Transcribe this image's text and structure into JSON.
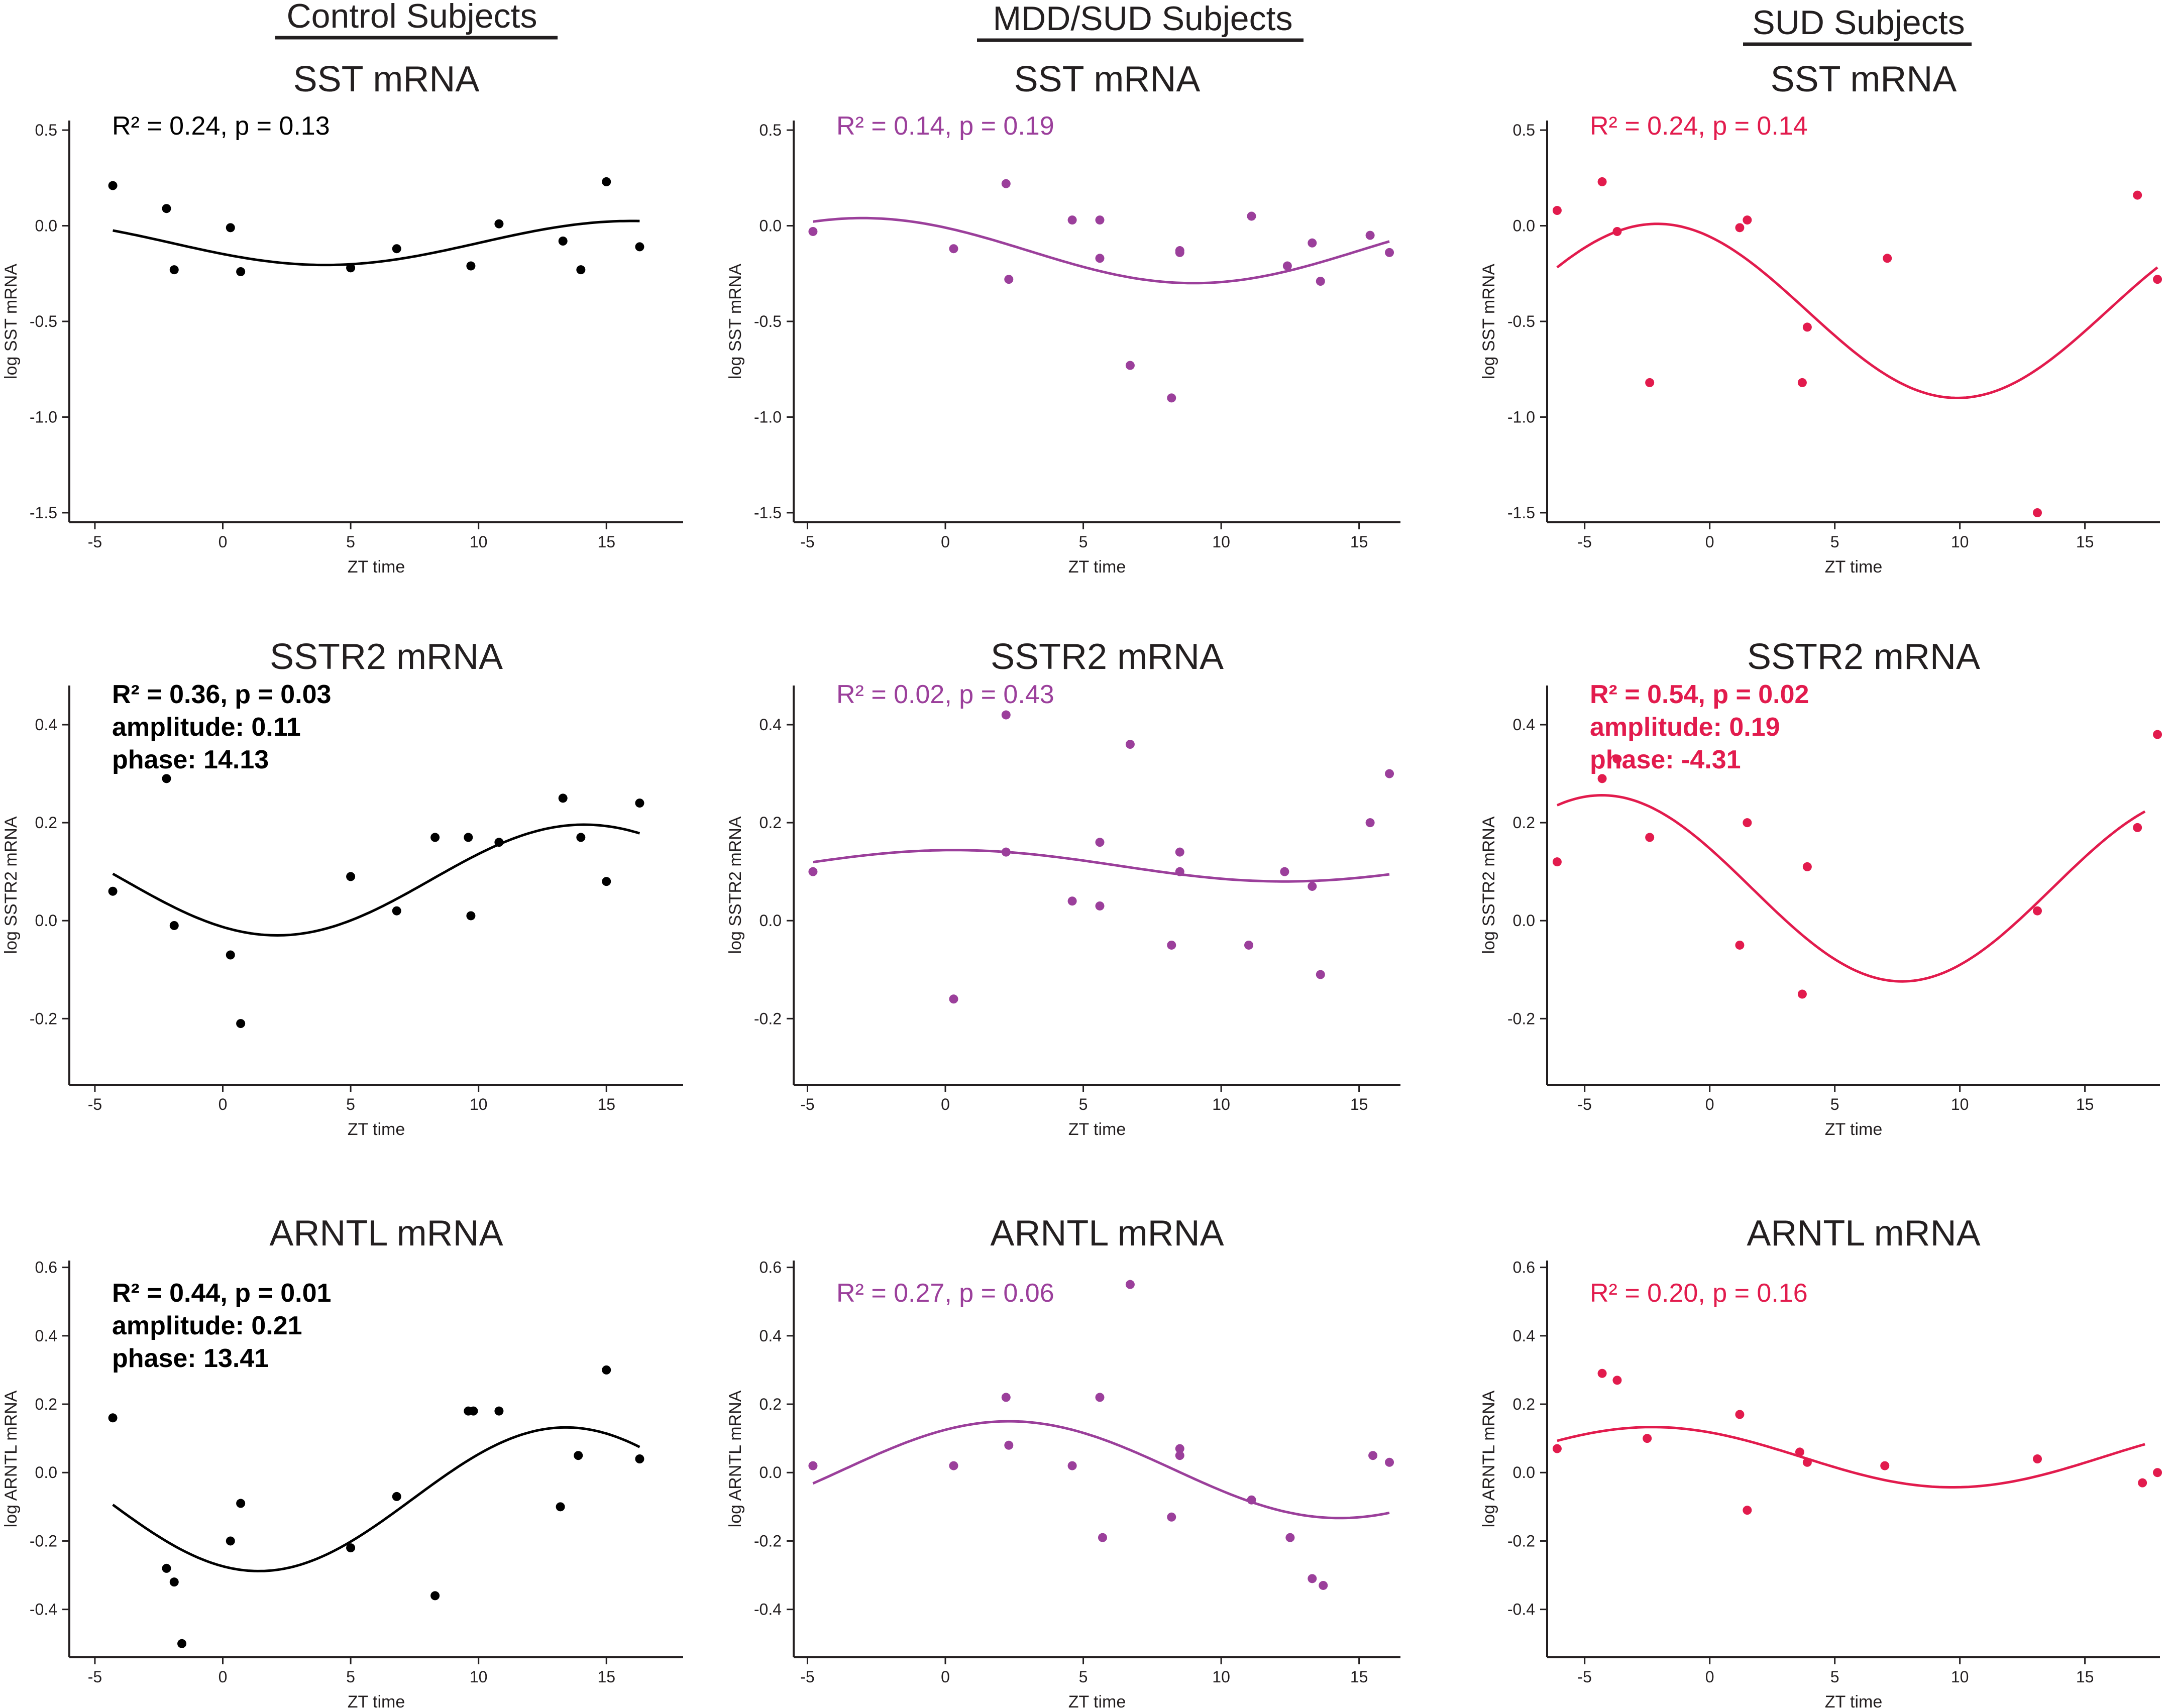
{
  "columns": [
    {
      "label": "Control Subjects",
      "color": "#000000"
    },
    {
      "label": "MDD/SUD Subjects",
      "color": "#9b3f9b"
    },
    {
      "label": "SUD Subjects",
      "color": "#e21b4d"
    }
  ],
  "chart_data": [
    {
      "type": "scatter",
      "row": 0,
      "col": 0,
      "title": "SST mRNA",
      "stats": [
        "R² = 0.24, p = 0.13"
      ],
      "stats_bold": false,
      "xlabel": "ZT time",
      "ylabel": "log SST mRNA",
      "xlim": [
        -6,
        18
      ],
      "ylim": [
        -1.55,
        0.55
      ],
      "xticks": [
        -5,
        0,
        5,
        10,
        15
      ],
      "xtick_labels": [
        "-5",
        "0",
        "5",
        "10",
        "15"
      ],
      "yticks": [
        0.5,
        0.0,
        -0.5,
        -1.0,
        -1.5
      ],
      "ytick_labels": [
        "0.5",
        "0.0",
        "-0.5",
        "-1.0",
        "-1.5"
      ],
      "points": [
        [
          -4.3,
          0.21
        ],
        [
          -2.2,
          0.09
        ],
        [
          -1.9,
          -0.23
        ],
        [
          0.3,
          -0.01
        ],
        [
          0.7,
          -0.24
        ],
        [
          5.0,
          -0.22
        ],
        [
          6.8,
          -0.12
        ],
        [
          9.7,
          -0.21
        ],
        [
          10.8,
          0.01
        ],
        [
          13.3,
          -0.08
        ],
        [
          14.0,
          -0.23
        ],
        [
          15.0,
          0.23
        ],
        [
          16.3,
          -0.11
        ]
      ],
      "fit": {
        "mesor": -0.09,
        "amplitude": 0.115,
        "peak": 16.0,
        "x_from": -4.3,
        "x_to": 16.3
      }
    },
    {
      "type": "scatter",
      "row": 0,
      "col": 1,
      "title": "SST mRNA",
      "stats": [
        "R² =  0.14, p = 0.19"
      ],
      "stats_bold": false,
      "xlabel": "ZT time",
      "ylabel": "log SST mRNA",
      "xlim": [
        -5.5,
        16.5
      ],
      "ylim": [
        -1.55,
        0.55
      ],
      "xticks": [
        -5,
        0,
        5,
        10,
        15
      ],
      "xtick_labels": [
        "-5",
        "0",
        "5",
        "10",
        "15"
      ],
      "yticks": [
        0.5,
        0.0,
        -0.5,
        -1.0,
        -1.5
      ],
      "ytick_labels": [
        "0.5",
        "0.0",
        "-0.5",
        "-1.0",
        "-1.5"
      ],
      "points": [
        [
          -4.8,
          -0.03
        ],
        [
          0.3,
          -0.12
        ],
        [
          2.2,
          0.22
        ],
        [
          2.3,
          -0.28
        ],
        [
          4.6,
          0.03
        ],
        [
          5.6,
          0.03
        ],
        [
          5.6,
          -0.17
        ],
        [
          6.7,
          -0.73
        ],
        [
          8.2,
          -0.9
        ],
        [
          8.5,
          -0.13
        ],
        [
          8.5,
          -0.14
        ],
        [
          11.1,
          0.05
        ],
        [
          12.4,
          -0.21
        ],
        [
          13.3,
          -0.09
        ],
        [
          13.6,
          -0.29
        ],
        [
          15.4,
          -0.05
        ],
        [
          16.1,
          -0.14
        ]
      ],
      "fit": {
        "mesor": -0.13,
        "amplitude": 0.17,
        "peak": -3.0,
        "x_from": -4.8,
        "x_to": 16.1
      }
    },
    {
      "type": "scatter",
      "row": 0,
      "col": 2,
      "title": "SST mRNA",
      "stats": [
        "R² = 0.24, p = 0.14"
      ],
      "stats_bold": false,
      "xlabel": "ZT time",
      "ylabel": "log SST mRNA",
      "xlim": [
        -6.5,
        18
      ],
      "ylim": [
        -1.55,
        0.55
      ],
      "xticks": [
        -5,
        0,
        5,
        10,
        15
      ],
      "xtick_labels": [
        "-5",
        "0",
        "5",
        "10",
        "15"
      ],
      "yticks": [
        0.5,
        0.0,
        -0.5,
        -1.0,
        -1.5
      ],
      "ytick_labels": [
        "0.5",
        "0.0",
        "-0.5",
        "-1.0",
        "-1.5"
      ],
      "points": [
        [
          -6.1,
          0.08
        ],
        [
          -4.3,
          0.23
        ],
        [
          -3.7,
          -0.03
        ],
        [
          -2.4,
          -0.82
        ],
        [
          1.2,
          -0.01
        ],
        [
          1.5,
          0.03
        ],
        [
          3.7,
          -0.82
        ],
        [
          3.9,
          -0.53
        ],
        [
          7.1,
          -0.17
        ],
        [
          13.1,
          -1.5
        ],
        [
          17.1,
          0.16
        ],
        [
          17.9,
          -0.28
        ]
      ],
      "fit": {
        "mesor": -0.445,
        "amplitude": 0.455,
        "peak": -2.1,
        "x_from": -6.1,
        "x_to": 17.9
      }
    },
    {
      "type": "scatter",
      "row": 1,
      "col": 0,
      "title": "SSTR2 mRNA",
      "stats": [
        "R² = 0.36, p = 0.03",
        "amplitude: 0.11",
        "phase: 14.13"
      ],
      "stats_bold": true,
      "xlabel": "ZT time",
      "ylabel": "log SSTR2 mRNA",
      "xlim": [
        -6,
        18
      ],
      "ylim": [
        -0.335,
        0.48
      ],
      "xticks": [
        -5,
        0,
        5,
        10,
        15
      ],
      "xtick_labels": [
        "-5",
        "0",
        "5",
        "10",
        "15"
      ],
      "yticks": [
        0.4,
        0.2,
        0.0,
        -0.2
      ],
      "ytick_labels": [
        "0.4",
        "0.2",
        "0.0",
        "-0.2"
      ],
      "points": [
        [
          -4.3,
          0.06
        ],
        [
          -2.2,
          0.29
        ],
        [
          -1.9,
          -0.01
        ],
        [
          0.3,
          -0.07
        ],
        [
          0.7,
          -0.21
        ],
        [
          5.0,
          0.09
        ],
        [
          6.8,
          0.02
        ],
        [
          8.3,
          0.17
        ],
        [
          9.6,
          0.17
        ],
        [
          9.7,
          0.01
        ],
        [
          10.8,
          0.16
        ],
        [
          13.3,
          0.25
        ],
        [
          14.0,
          0.17
        ],
        [
          15.0,
          0.08
        ],
        [
          16.3,
          0.24
        ]
      ],
      "fit": {
        "mesor": 0.083,
        "amplitude": 0.113,
        "peak": 14.13,
        "x_from": -4.3,
        "x_to": 16.3
      }
    },
    {
      "type": "scatter",
      "row": 1,
      "col": 1,
      "title": "SSTR2 mRNA",
      "stats": [
        "R² = 0.02, p = 0.43"
      ],
      "stats_bold": false,
      "xlabel": "ZT time",
      "ylabel": "log SSTR2 mRNA",
      "xlim": [
        -5.5,
        16.5
      ],
      "ylim": [
        -0.335,
        0.48
      ],
      "xticks": [
        -5,
        0,
        5,
        10,
        15
      ],
      "xtick_labels": [
        "-5",
        "0",
        "5",
        "10",
        "15"
      ],
      "yticks": [
        0.4,
        0.2,
        0.0,
        -0.2
      ],
      "ytick_labels": [
        "0.4",
        "0.2",
        "0.0",
        "-0.2"
      ],
      "points": [
        [
          -4.8,
          0.1
        ],
        [
          0.3,
          -0.16
        ],
        [
          2.2,
          0.42
        ],
        [
          2.2,
          0.14
        ],
        [
          4.6,
          0.04
        ],
        [
          5.6,
          0.16
        ],
        [
          5.6,
          0.03
        ],
        [
          6.7,
          0.36
        ],
        [
          8.2,
          -0.05
        ],
        [
          8.5,
          0.14
        ],
        [
          8.5,
          0.1
        ],
        [
          11.0,
          -0.05
        ],
        [
          12.3,
          0.1
        ],
        [
          13.3,
          0.07
        ],
        [
          13.6,
          -0.11
        ],
        [
          15.4,
          0.2
        ],
        [
          16.1,
          0.3
        ]
      ],
      "fit": {
        "mesor": 0.112,
        "amplitude": 0.032,
        "peak": 0.3,
        "x_from": -4.8,
        "x_to": 16.1
      }
    },
    {
      "type": "scatter",
      "row": 1,
      "col": 2,
      "title": "SSTR2 mRNA",
      "stats": [
        "R² = 0.54, p = 0.02",
        "amplitude: 0.19",
        "phase: -4.31"
      ],
      "stats_bold": true,
      "xlabel": "ZT time",
      "ylabel": "log SSTR2 mRNA",
      "xlim": [
        -6.5,
        18
      ],
      "ylim": [
        -0.335,
        0.48
      ],
      "xticks": [
        -5,
        0,
        5,
        10,
        15
      ],
      "xtick_labels": [
        "-5",
        "0",
        "5",
        "10",
        "15"
      ],
      "yticks": [
        0.4,
        0.2,
        0.0,
        -0.2
      ],
      "ytick_labels": [
        "0.4",
        "0.2",
        "0.0",
        "-0.2"
      ],
      "points": [
        [
          -6.1,
          0.12
        ],
        [
          -4.3,
          0.29
        ],
        [
          -3.7,
          0.33
        ],
        [
          -2.4,
          0.17
        ],
        [
          1.2,
          -0.05
        ],
        [
          1.5,
          0.2
        ],
        [
          3.7,
          -0.15
        ],
        [
          3.9,
          0.11
        ],
        [
          13.1,
          0.02
        ],
        [
          17.1,
          0.19
        ],
        [
          17.9,
          0.38
        ]
      ],
      "fit": {
        "mesor": 0.066,
        "amplitude": 0.19,
        "peak": -4.31,
        "x_from": -6.1,
        "x_to": 17.4
      }
    },
    {
      "type": "scatter",
      "row": 2,
      "col": 0,
      "title": "ARNTL mRNA",
      "stats": [
        "R² = 0.44, p = 0.01",
        "amplitude: 0.21",
        "phase: 13.41"
      ],
      "stats_bold": true,
      "xlabel": "ZT time",
      "ylabel": "log ARNTL mRNA",
      "xlim": [
        -6,
        18
      ],
      "ylim": [
        -0.54,
        0.62
      ],
      "xticks": [
        -5,
        0,
        5,
        10,
        15
      ],
      "xtick_labels": [
        "-5",
        "0",
        "5",
        "10",
        "15"
      ],
      "yticks": [
        0.6,
        0.4,
        0.2,
        0.0,
        -0.2,
        -0.4
      ],
      "ytick_labels": [
        "0.6",
        "0.4",
        "0.2",
        "0.0",
        "-0.2",
        "-0.4"
      ],
      "points": [
        [
          -4.3,
          0.16
        ],
        [
          -2.2,
          -0.28
        ],
        [
          -1.9,
          -0.32
        ],
        [
          -1.6,
          -0.5
        ],
        [
          0.3,
          -0.2
        ],
        [
          0.7,
          -0.09
        ],
        [
          5.0,
          -0.22
        ],
        [
          6.8,
          -0.07
        ],
        [
          8.3,
          -0.36
        ],
        [
          9.6,
          0.18
        ],
        [
          9.8,
          0.18
        ],
        [
          10.8,
          0.18
        ],
        [
          13.2,
          -0.1
        ],
        [
          13.9,
          0.05
        ],
        [
          15.0,
          0.3
        ],
        [
          16.3,
          0.04
        ]
      ],
      "fit": {
        "mesor": -0.078,
        "amplitude": 0.21,
        "peak": 13.41,
        "x_from": -4.3,
        "x_to": 16.3
      }
    },
    {
      "type": "scatter",
      "row": 2,
      "col": 1,
      "title": "ARNTL mRNA",
      "stats": [
        "R² = 0.27, p = 0.06"
      ],
      "stats_bold": false,
      "xlabel": "ZT time",
      "ylabel": "log ARNTL mRNA",
      "xlim": [
        -5.5,
        16.5
      ],
      "ylim": [
        -0.54,
        0.62
      ],
      "xticks": [
        -5,
        0,
        5,
        10,
        15
      ],
      "xtick_labels": [
        "-5",
        "0",
        "5",
        "10",
        "15"
      ],
      "yticks": [
        0.6,
        0.4,
        0.2,
        0.0,
        -0.2,
        -0.4
      ],
      "ytick_labels": [
        "0.6",
        "0.4",
        "0.2",
        "0.0",
        "-0.2",
        "-0.4"
      ],
      "points": [
        [
          -4.8,
          0.02
        ],
        [
          0.3,
          0.02
        ],
        [
          2.2,
          0.22
        ],
        [
          2.3,
          0.08
        ],
        [
          4.6,
          0.02
        ],
        [
          5.6,
          0.22
        ],
        [
          5.7,
          -0.19
        ],
        [
          6.7,
          0.55
        ],
        [
          8.2,
          -0.13
        ],
        [
          8.5,
          0.07
        ],
        [
          8.5,
          0.05
        ],
        [
          11.1,
          -0.08
        ],
        [
          12.5,
          -0.19
        ],
        [
          13.3,
          -0.31
        ],
        [
          13.7,
          -0.33
        ],
        [
          15.5,
          0.05
        ],
        [
          16.1,
          0.03
        ]
      ],
      "fit": {
        "mesor": 0.0085,
        "amplitude": 0.1415,
        "peak": 2.3,
        "x_from": -4.8,
        "x_to": 16.1
      }
    },
    {
      "type": "scatter",
      "row": 2,
      "col": 2,
      "title": "ARNTL mRNA",
      "stats": [
        "R² = 0.20, p = 0.16"
      ],
      "stats_bold": false,
      "xlabel": "ZT time",
      "ylabel": "log ARNTL mRNA",
      "xlim": [
        -6.5,
        18
      ],
      "ylim": [
        -0.54,
        0.62
      ],
      "xticks": [
        -5,
        0,
        5,
        10,
        15
      ],
      "xtick_labels": [
        "-5",
        "0",
        "5",
        "10",
        "15"
      ],
      "yticks": [
        0.6,
        0.4,
        0.2,
        0.0,
        -0.2,
        -0.4
      ],
      "ytick_labels": [
        "0.6",
        "0.4",
        "0.2",
        "0.0",
        "-0.2",
        "-0.4"
      ],
      "points": [
        [
          -6.1,
          0.07
        ],
        [
          -4.3,
          0.29
        ],
        [
          -3.7,
          0.27
        ],
        [
          -2.5,
          0.1
        ],
        [
          1.2,
          0.17
        ],
        [
          1.5,
          -0.11
        ],
        [
          3.6,
          0.06
        ],
        [
          3.9,
          0.03
        ],
        [
          7.0,
          0.02
        ],
        [
          13.1,
          0.04
        ],
        [
          17.3,
          -0.03
        ],
        [
          17.9,
          0.0
        ]
      ],
      "fit": {
        "mesor": 0.045,
        "amplitude": 0.088,
        "peak": -2.3,
        "x_from": -6.1,
        "x_to": 17.4
      }
    }
  ]
}
